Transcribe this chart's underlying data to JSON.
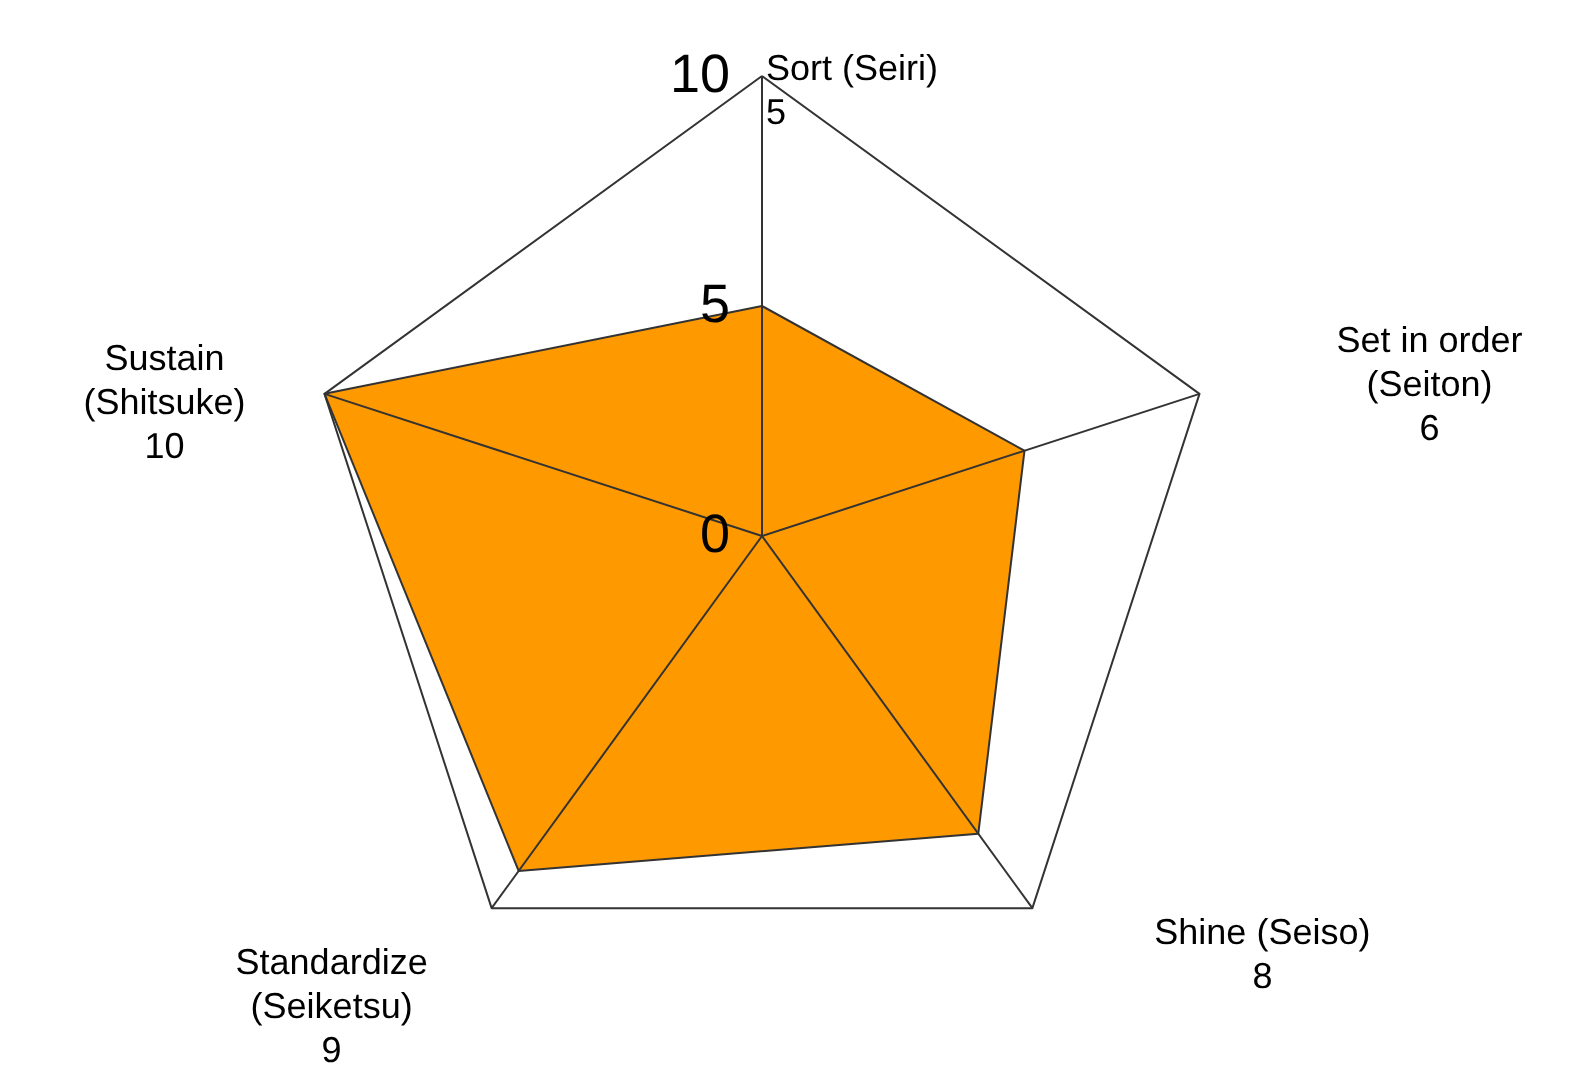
{
  "chart_data": {
    "type": "radar",
    "categories": [
      "Sort (Seiri)\n5",
      "Set in order\n(Seiton)\n6",
      "Shine (Seiso)\n8",
      "Standardize\n(Seiketsu)\n9",
      "Sustain\n(Shitsuke)\n10"
    ],
    "series": [
      {
        "color": "#ff9900",
        "values": [
          5,
          6,
          8,
          9,
          10
        ]
      }
    ],
    "ylim": [
      0,
      10
    ],
    "yticks": [
      0,
      5,
      10
    ],
    "grid": true
  }
}
